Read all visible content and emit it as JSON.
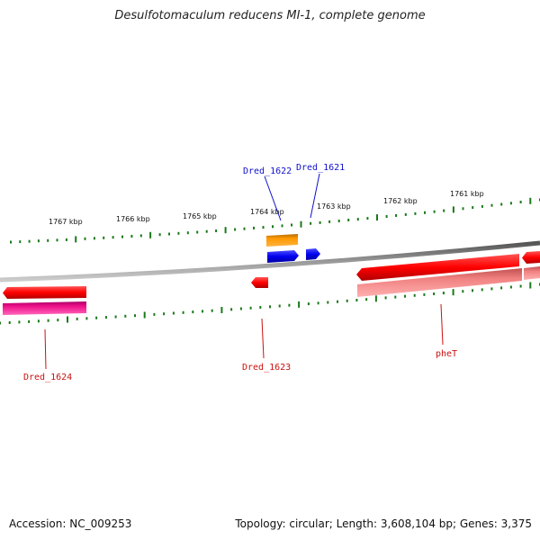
{
  "title": "Desulfotomaculum reducens MI-1, complete genome",
  "footer": {
    "accession": "Accession: NC_009253",
    "summary": "Topology: circular; Length: 3,608,104 bp; Genes: 3,375"
  },
  "scale_labels": [
    "1767 kbp",
    "1766 kbp",
    "1765 kbp",
    "1764 kbp",
    "1763 kbp",
    "1762 kbp",
    "1761 kbp"
  ],
  "gene_labels": {
    "dred_1622": "Dred_1622",
    "dred_1621": "Dred_1621",
    "dred_1624": "Dred_1624",
    "dred_1623": "Dred_1623",
    "phet": "pheT"
  },
  "colors": {
    "forward_label": "#1010cc",
    "reverse_label": "#cc1010",
    "tick": "#1a7a1a",
    "backbone": "#808080",
    "red_gene": "#ff0000",
    "blue_gene": "#0000ee",
    "orange_gene": "#ff9900",
    "magenta_gene": "#ee1188",
    "pink_gene": "#f08080"
  }
}
